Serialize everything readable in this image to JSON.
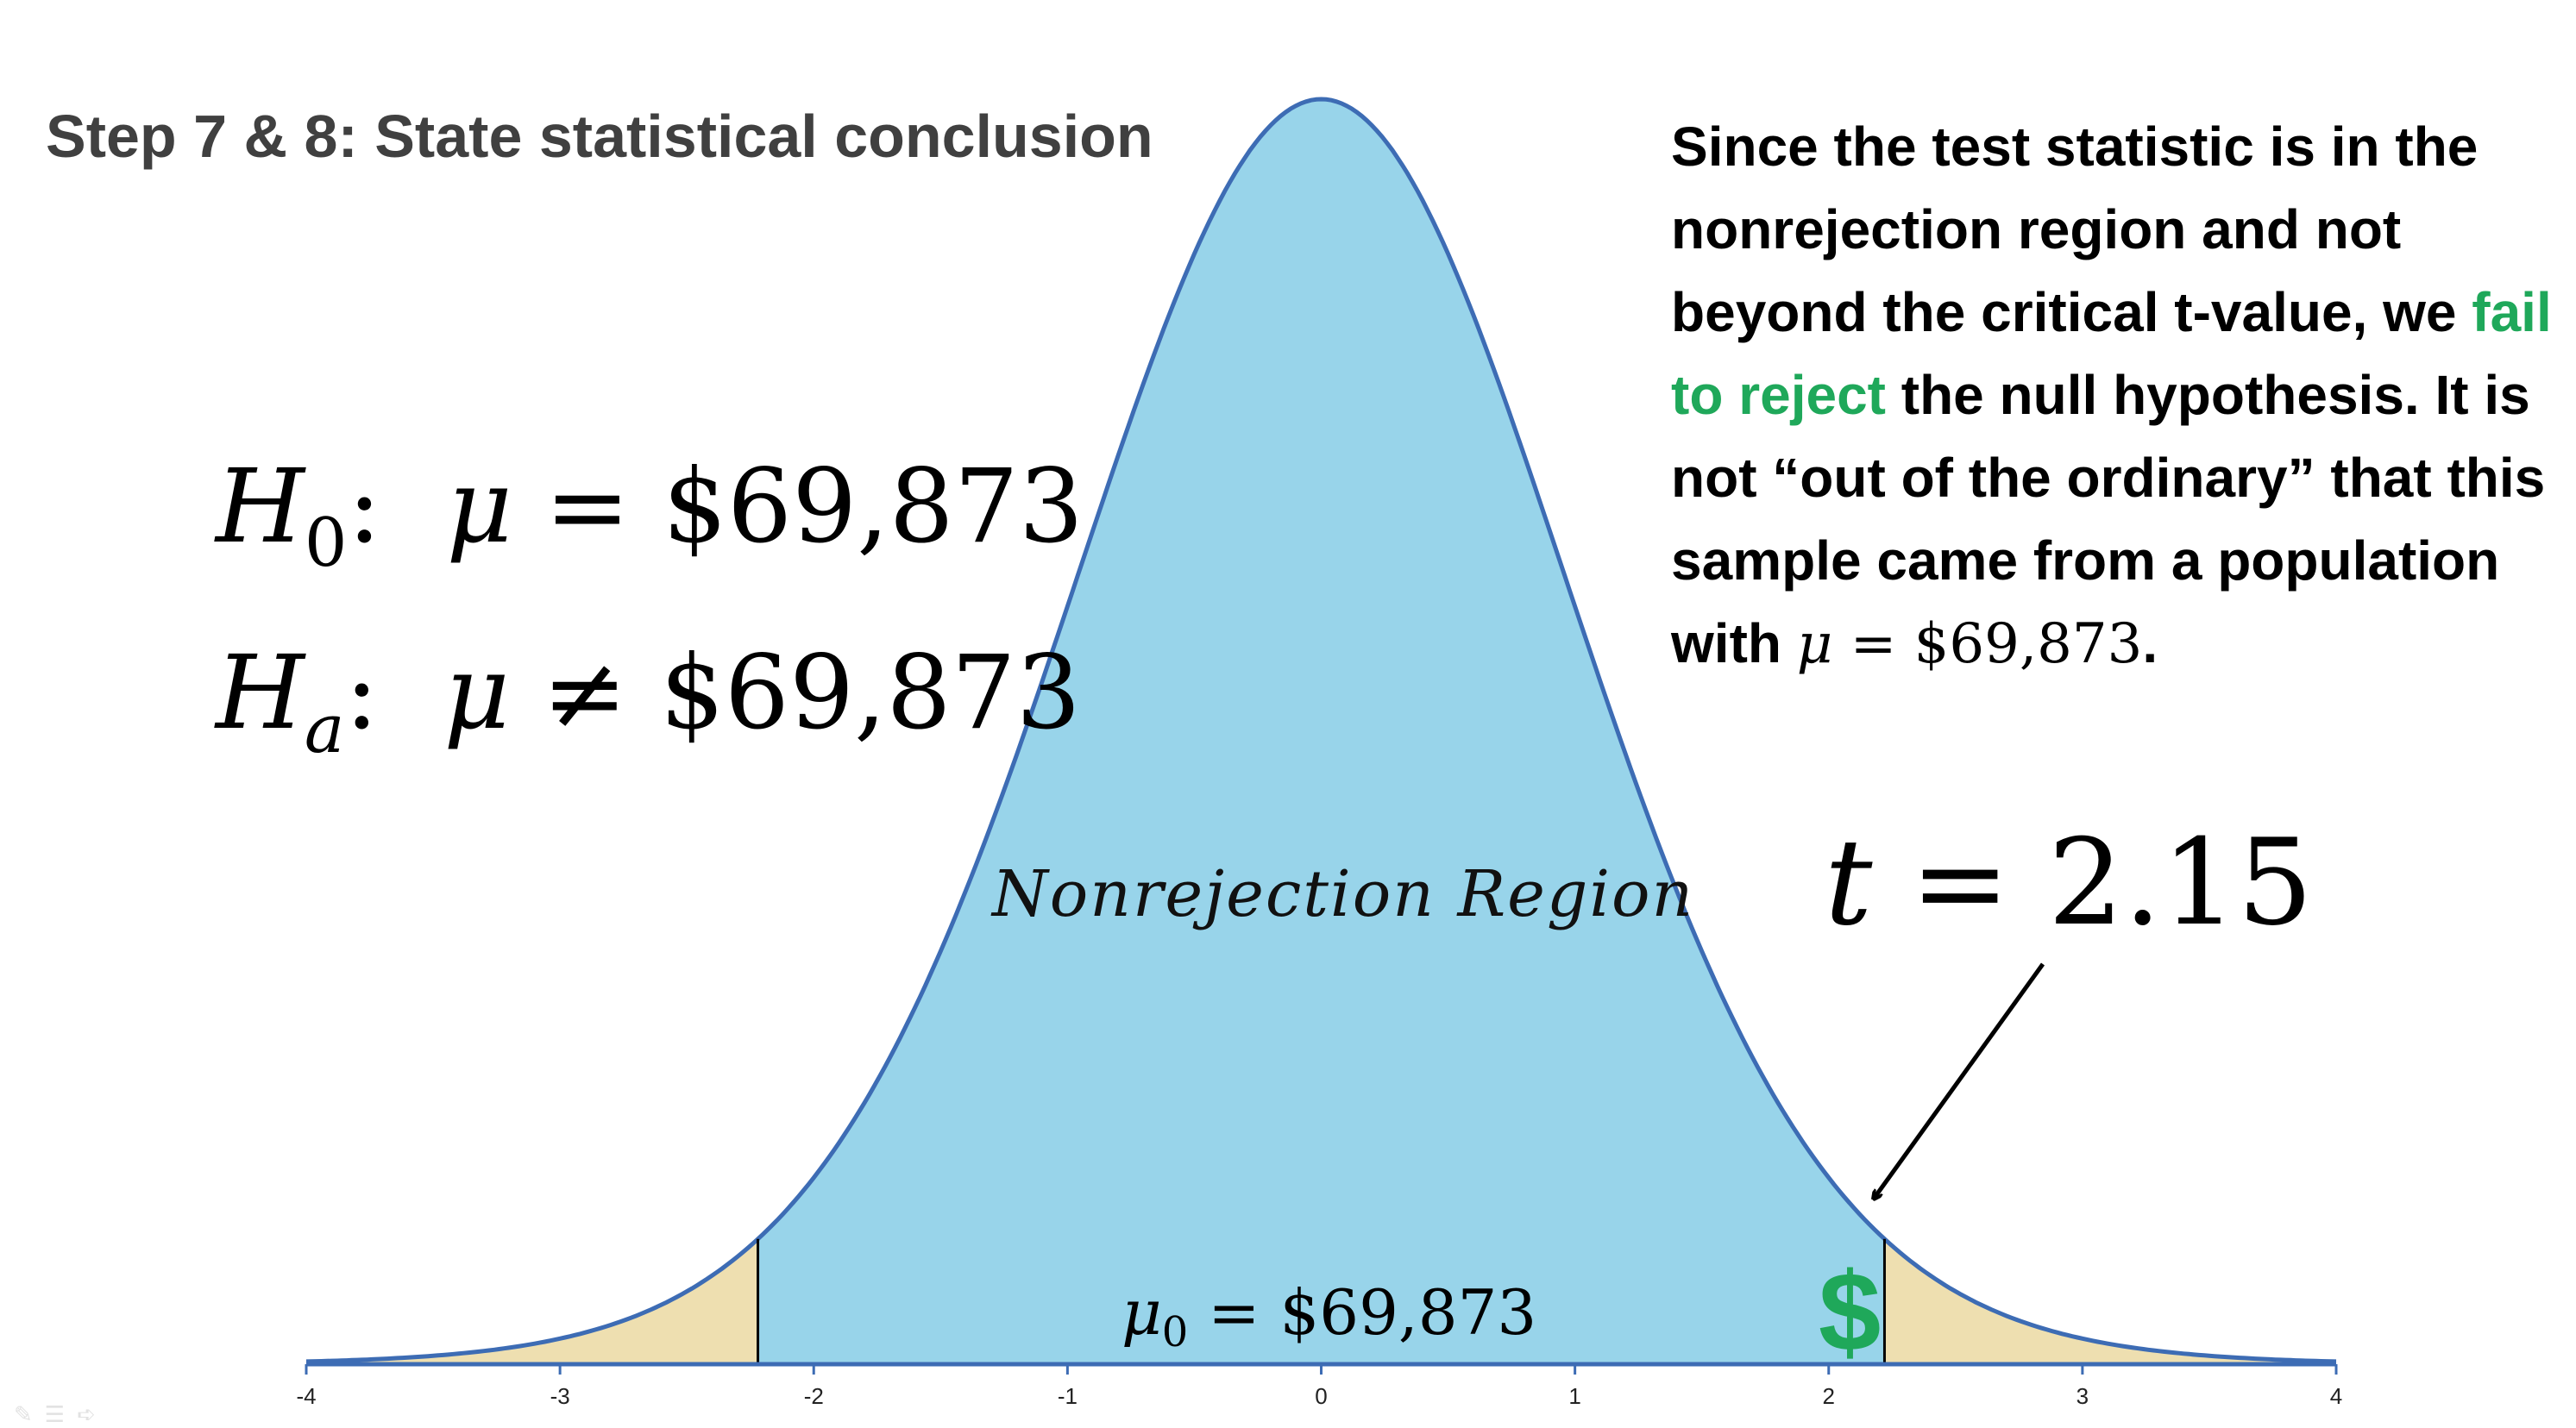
{
  "title": "Step 7 & 8: State statistical conclusion",
  "hypotheses": {
    "null": {
      "symbol": "H",
      "subscript": "0",
      "param": "μ",
      "relation": "=",
      "value": "$69,873"
    },
    "alternative": {
      "symbol": "H",
      "subscript": "a",
      "param": "μ",
      "relation": "≠",
      "value": "$69,873"
    }
  },
  "conclusion": {
    "before": "Since the test statistic is in the nonrejection region and not beyond the critical t-value, we ",
    "highlight": "fail to reject",
    "after": " the null hypothesis. It is not “out of the ordinary” that this sample came from a population with ",
    "mu": "μ",
    "math_rest": " = $69,873",
    "end": "."
  },
  "test_stat": {
    "var": "t",
    "relation": "=",
    "value": "2.15"
  },
  "region_label": "Nonrejection Region",
  "mean_label": {
    "param": "μ",
    "subscript": "0",
    "relation": "=",
    "value": "$69,873"
  },
  "dollar_icon": "$",
  "colors": {
    "nonrejection": "#98d4ea",
    "rejection": "#eedfb0",
    "curve": "#3d6cb4",
    "highlight": "#1fa85a",
    "title": "#404040"
  },
  "chart_data": {
    "type": "area",
    "distribution": "t",
    "xlim": [
      -4,
      4
    ],
    "x_ticks": [
      -4,
      -3,
      -2,
      -1,
      0,
      1,
      2,
      3,
      4
    ],
    "critical_values": [
      -2.22,
      2.22
    ],
    "test_statistic": 2.15,
    "regions": [
      "rejection",
      "nonrejection",
      "rejection"
    ]
  }
}
